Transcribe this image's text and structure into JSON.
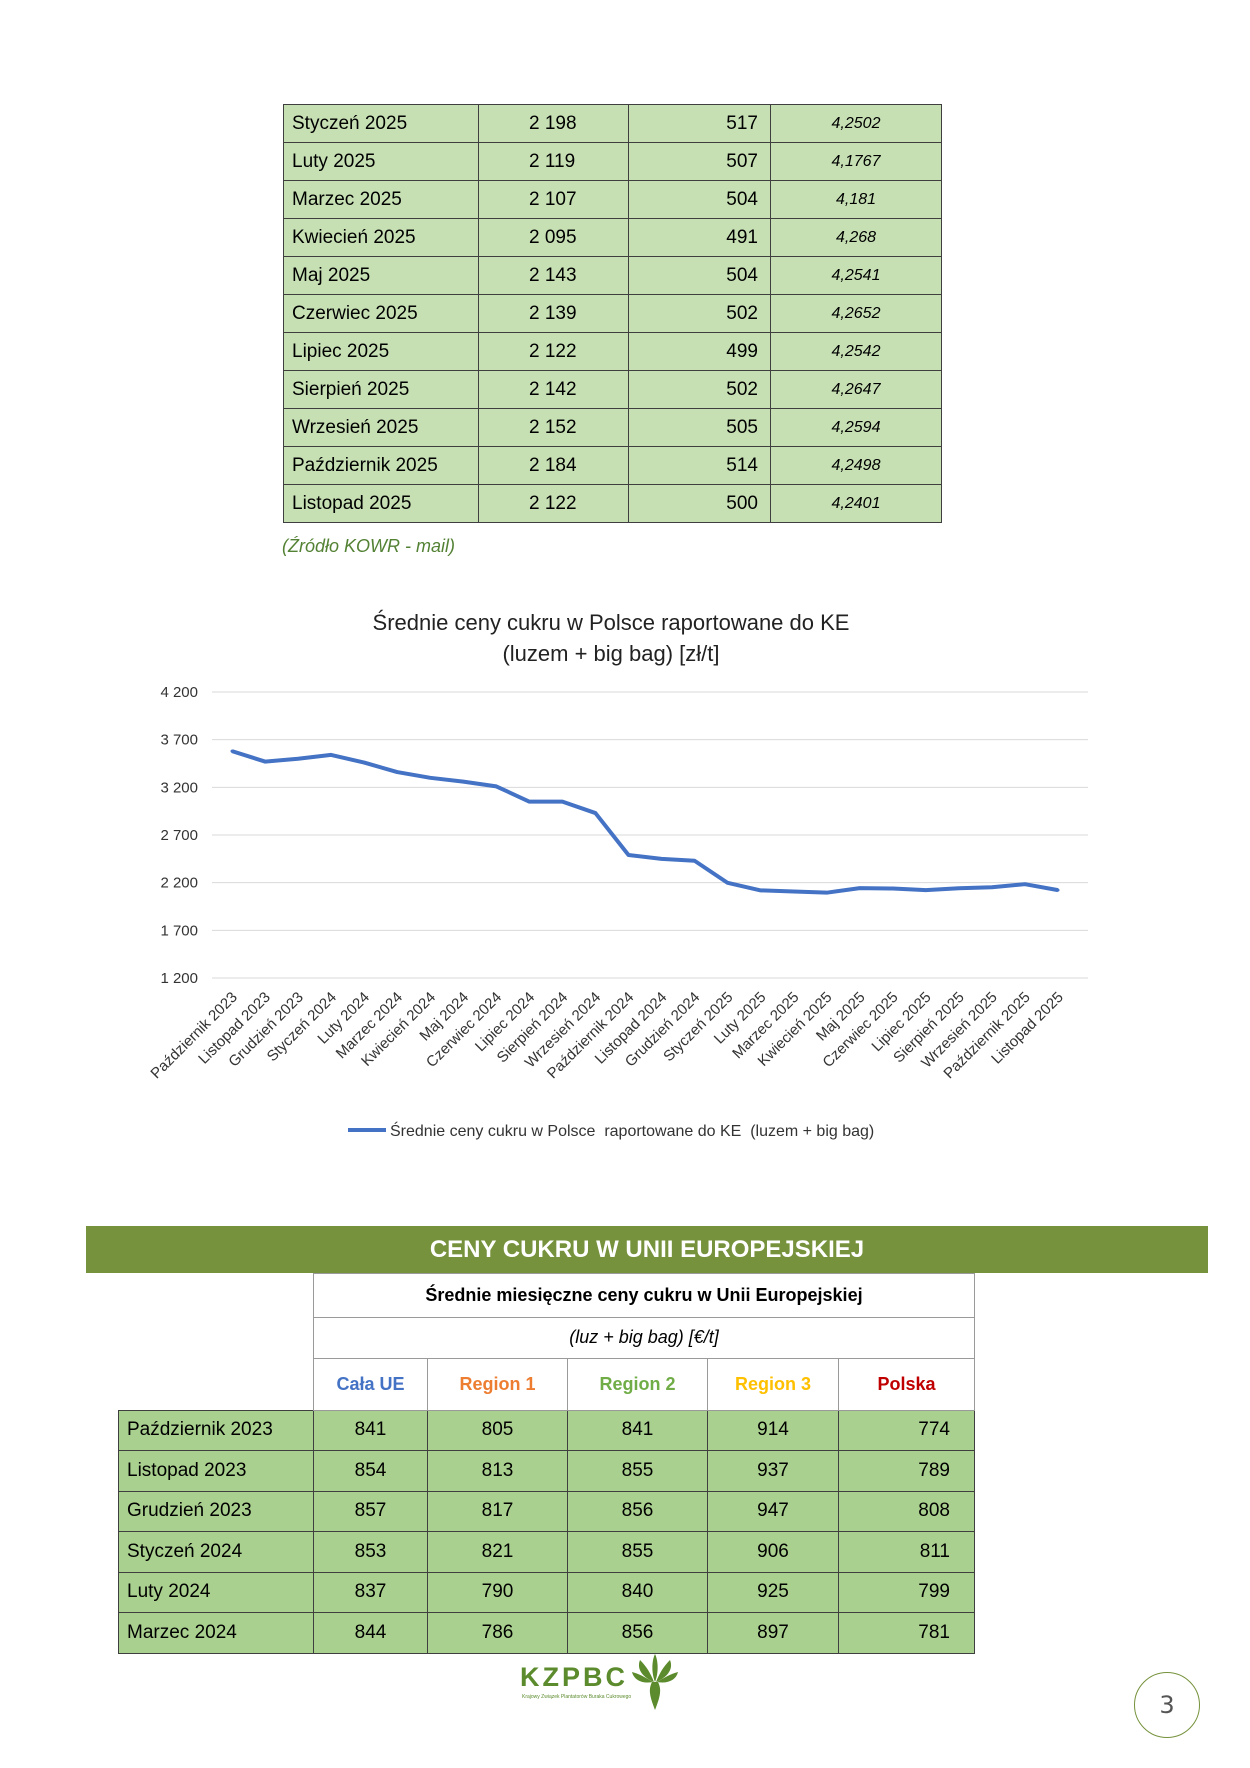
{
  "kowr_table": {
    "rows": [
      {
        "month": "Styczeń 2025",
        "pln": "2 198",
        "eur": "517",
        "rate": "4,2502"
      },
      {
        "month": "Luty 2025",
        "pln": "2 119",
        "eur": "507",
        "rate": "4,1767"
      },
      {
        "month": "Marzec 2025",
        "pln": "2 107",
        "eur": "504",
        "rate": "4,181"
      },
      {
        "month": "Kwiecień 2025",
        "pln": "2 095",
        "eur": "491",
        "rate": "4,268"
      },
      {
        "month": "Maj 2025",
        "pln": "2 143",
        "eur": "504",
        "rate": "4,2541"
      },
      {
        "month": "Czerwiec 2025",
        "pln": "2 139",
        "eur": "502",
        "rate": "4,2652"
      },
      {
        "month": "Lipiec 2025",
        "pln": "2 122",
        "eur": "499",
        "rate": "4,2542"
      },
      {
        "month": "Sierpień 2025",
        "pln": "2 142",
        "eur": "502",
        "rate": "4,2647"
      },
      {
        "month": "Wrzesień 2025",
        "pln": "2 152",
        "eur": "505",
        "rate": "4,2594"
      },
      {
        "month": "Październik 2025",
        "pln": "2 184",
        "eur": "514",
        "rate": "4,2498"
      },
      {
        "month": "Listopad 2025",
        "pln": "2 122",
        "eur": "500",
        "rate": "4,2401"
      }
    ],
    "source": "(Źródło KOWR - mail)"
  },
  "chart_data": {
    "type": "line",
    "title": "Średnie ceny cukru w Polsce raportowane do KE",
    "subtitle": "(luzem + big bag) [zł/t]",
    "xlabel": "",
    "ylabel": "",
    "ylim": [
      1200,
      4200
    ],
    "yticks": [
      "4 200",
      "3 700",
      "3 200",
      "2 700",
      "2 200",
      "1 700",
      "1 200"
    ],
    "ytick_values": [
      4200,
      3700,
      3200,
      2700,
      2200,
      1700,
      1200
    ],
    "grid": true,
    "legend_position": "bottom",
    "line_color": "#4472c4",
    "categories": [
      "Październik 2023",
      "Listopad 2023",
      "Grudzień 2023",
      "Styczeń 2024",
      "Luty 2024",
      "Marzec 2024",
      "Kwiecień 2024",
      "Maj 2024",
      "Czerwiec 2024",
      "Lipiec 2024",
      "Sierpień 2024",
      "Wrzesień 2024",
      "Październik 2024",
      "Listopad 2024",
      "Grudzień 2024",
      "Styczeń 2025",
      "Luty 2025",
      "Marzec 2025",
      "Kwiecień 2025",
      "Maj 2025",
      "Czerwiec 2025",
      "Lipiec 2025",
      "Sierpień 2025",
      "Wrzesień 2025",
      "Październik 2025",
      "Listopad 2025"
    ],
    "series": [
      {
        "name": "Średnie ceny cukru w Polsce  raportowane do KE  (luzem + big bag)",
        "values": [
          3580,
          3470,
          3500,
          3540,
          3460,
          3360,
          3300,
          3260,
          3210,
          3050,
          3050,
          2930,
          2490,
          2450,
          2430,
          2198,
          2119,
          2107,
          2095,
          2143,
          2139,
          2122,
          2142,
          2152,
          2184,
          2122
        ]
      }
    ]
  },
  "eu_section": {
    "banner": "CENY CUKRU W UNII EUROPEJSKIEJ",
    "table_title": "Średnie miesięczne ceny cukru w Unii Europejskiej",
    "unit": "(luz + big bag) [€/t]",
    "headers": [
      {
        "label": "Cała UE",
        "color": "#4472c4"
      },
      {
        "label": "Region 1",
        "color": "#ed7d31"
      },
      {
        "label": "Region 2",
        "color": "#70ad47"
      },
      {
        "label": "Region 3",
        "color": "#ffc000"
      },
      {
        "label": "Polska",
        "color": "#c00000"
      }
    ],
    "rows": [
      {
        "month": "Październik 2023",
        "ue": "841",
        "r1": "805",
        "r2": "841",
        "r3": "914",
        "pl": "774"
      },
      {
        "month": "Listopad 2023",
        "ue": "854",
        "r1": "813",
        "r2": "855",
        "r3": "937",
        "pl": "789"
      },
      {
        "month": "Grudzień 2023",
        "ue": "857",
        "r1": "817",
        "r2": "856",
        "r3": "947",
        "pl": "808"
      },
      {
        "month": "Styczeń 2024",
        "ue": "853",
        "r1": "821",
        "r2": "855",
        "r3": "906",
        "pl": "811"
      },
      {
        "month": "Luty 2024",
        "ue": "837",
        "r1": "790",
        "r2": "840",
        "r3": "925",
        "pl": "799"
      },
      {
        "month": "Marzec 2024",
        "ue": "844",
        "r1": "786",
        "r2": "856",
        "r3": "897",
        "pl": "781"
      }
    ]
  },
  "footer": {
    "logo_text": "KZPBC",
    "logo_subtext": "Krajowy Związek Plantatorów Buraka Cukrowego",
    "page_number": "3",
    "brand_color": "#5b8b2c"
  }
}
